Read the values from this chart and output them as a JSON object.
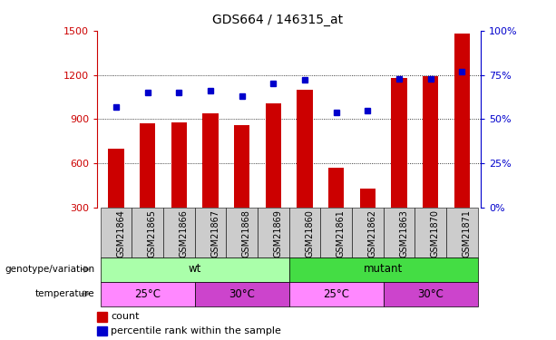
{
  "title": "GDS664 / 146315_at",
  "samples": [
    "GSM21864",
    "GSM21865",
    "GSM21866",
    "GSM21867",
    "GSM21868",
    "GSM21869",
    "GSM21860",
    "GSM21861",
    "GSM21862",
    "GSM21863",
    "GSM21870",
    "GSM21871"
  ],
  "counts": [
    700,
    870,
    880,
    940,
    860,
    1010,
    1100,
    570,
    430,
    1180,
    1190,
    1480
  ],
  "percentiles": [
    57,
    65,
    65,
    66,
    63,
    70,
    72,
    54,
    55,
    73,
    73,
    77
  ],
  "ylim_left": [
    300,
    1500
  ],
  "ylim_right": [
    0,
    100
  ],
  "yticks_left": [
    300,
    600,
    900,
    1200,
    1500
  ],
  "yticks_right": [
    0,
    25,
    50,
    75,
    100
  ],
  "bar_color": "#cc0000",
  "dot_color": "#0000cc",
  "bar_width": 0.5,
  "genotype_wt_color": "#aaffaa",
  "genotype_mutant_color": "#44dd44",
  "temp_25_color": "#ff88ff",
  "temp_30_color": "#cc44cc",
  "genotype_row_label": "genotype/variation",
  "temperature_row_label": "temperature",
  "genotype_groups": [
    {
      "label": "wt",
      "start": 0,
      "end": 5
    },
    {
      "label": "mutant",
      "start": 6,
      "end": 11
    }
  ],
  "temperature_groups": [
    {
      "label": "25°C",
      "start": 0,
      "end": 2
    },
    {
      "label": "30°C",
      "start": 3,
      "end": 5
    },
    {
      "label": "25°C",
      "start": 6,
      "end": 8
    },
    {
      "label": "30°C",
      "start": 9,
      "end": 11
    }
  ],
  "legend_count_label": "count",
  "legend_percentile_label": "percentile rank within the sample",
  "xtick_bg_color": "#cccccc",
  "arrow_color": "#888888"
}
